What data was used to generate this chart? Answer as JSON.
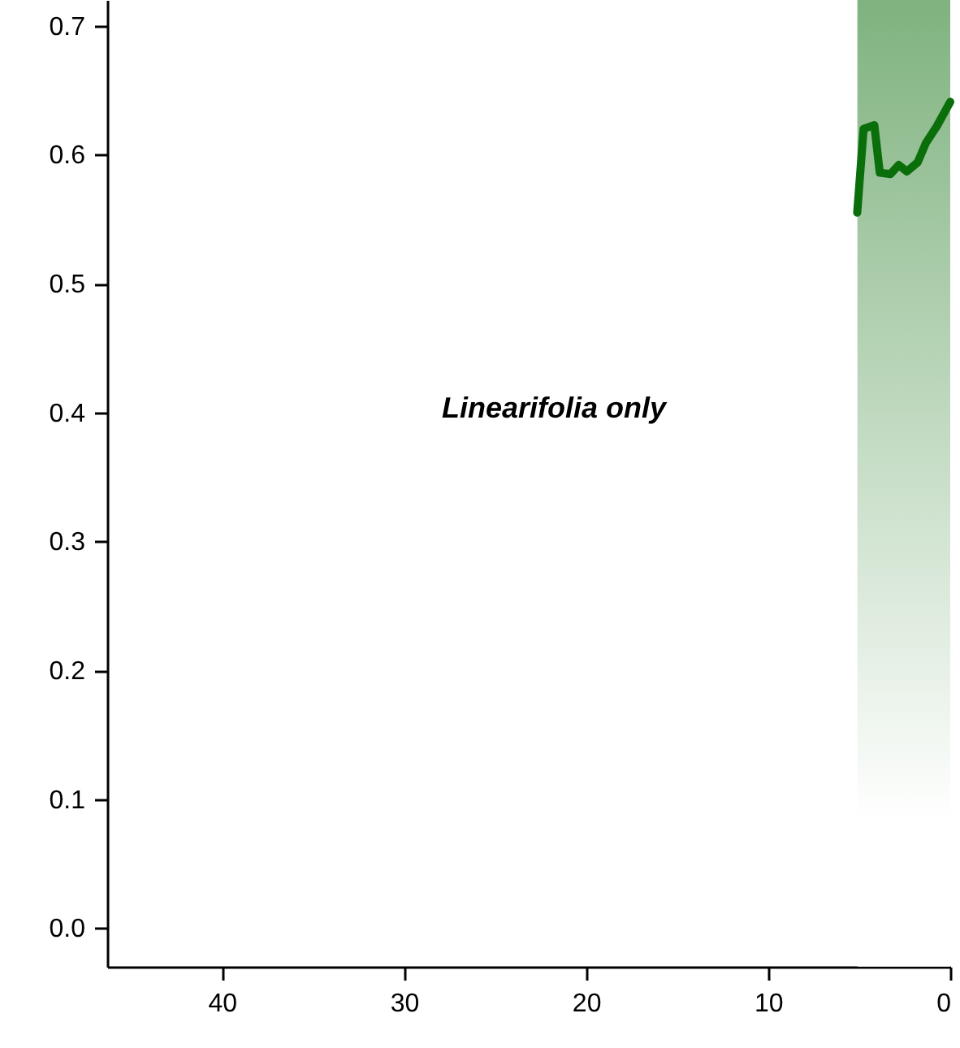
{
  "chart_data": {
    "type": "line",
    "x": [
      5.11,
      4.76,
      4.17,
      3.87,
      3.28,
      2.83,
      2.38,
      1.79,
      1.34,
      0.74,
      0
    ],
    "series": [
      {
        "color": "#0a6e0a",
        "values": [
          0.555,
          0.62,
          0.623,
          0.586,
          0.585,
          0.592,
          0.587,
          0.594,
          0.609,
          0.622,
          0.641
        ]
      }
    ],
    "xlim": [
      46.3,
      0
    ],
    "ylim": [
      -0.03,
      0.72
    ],
    "xticks": [
      40,
      30,
      20,
      10,
      0
    ],
    "yticks": [
      {
        "value": 0,
        "label": "0.0"
      },
      0.1,
      0.2,
      0.3,
      0.4,
      0.5,
      0.6,
      0.7
    ],
    "bands": [
      {
        "axis": "x",
        "from": 5.1,
        "to": 0,
        "color": "#5f9f5f"
      }
    ],
    "annotations": [
      "Linearifolia only"
    ],
    "grid": false,
    "marker": "none",
    "line_style": "solid"
  }
}
